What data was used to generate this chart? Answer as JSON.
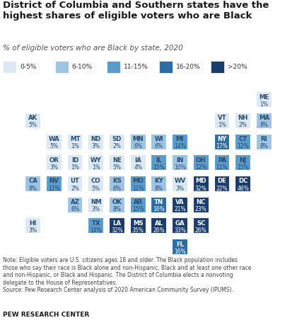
{
  "title": "District of Columbia and Southern states have the\nhighest shares of eligible voters who are Black",
  "subtitle": "% of eligible voters who are Black by state, 2020",
  "note": "Note: Eligible voters are U.S. citizens ages 18 and older. The Black population includes\nthose who say their race is Black alone and non-Hispanic, Black and at least one other race\nand non-Hispanic, or Black and Hispanic. The District of Columbia elects a nonvoting\ndelegate to the House of Representatives.\nSource: Pew Research Center analysis of 2020 American Community Survey (IPUMS).",
  "footer": "PEW RESEARCH CENTER",
  "legend": [
    {
      "label": "0-5%",
      "color": "#dce9f5"
    },
    {
      "label": "6-10%",
      "color": "#9ec4e4"
    },
    {
      "label": "11-15%",
      "color": "#5b9bcc"
    },
    {
      "label": "16-20%",
      "color": "#2e6da4"
    },
    {
      "label": ">20%",
      "color": "#1a3d6e"
    }
  ],
  "states": [
    {
      "abbr": "ME",
      "value": 1,
      "col": 11,
      "row": 0
    },
    {
      "abbr": "AK",
      "value": 5,
      "col": 0,
      "row": 1
    },
    {
      "abbr": "VT",
      "value": 1,
      "col": 9,
      "row": 1
    },
    {
      "abbr": "NH",
      "value": 2,
      "col": 10,
      "row": 1
    },
    {
      "abbr": "MA",
      "value": 8,
      "col": 11,
      "row": 1
    },
    {
      "abbr": "WA",
      "value": 5,
      "col": 1,
      "row": 2
    },
    {
      "abbr": "MT",
      "value": 1,
      "col": 2,
      "row": 2
    },
    {
      "abbr": "ND",
      "value": 3,
      "col": 3,
      "row": 2
    },
    {
      "abbr": "SD",
      "value": 2,
      "col": 4,
      "row": 2
    },
    {
      "abbr": "MN",
      "value": 6,
      "col": 5,
      "row": 2
    },
    {
      "abbr": "WI",
      "value": 6,
      "col": 6,
      "row": 2
    },
    {
      "abbr": "MI",
      "value": 14,
      "col": 7,
      "row": 2
    },
    {
      "abbr": "NY",
      "value": 17,
      "col": 9,
      "row": 2
    },
    {
      "abbr": "CT",
      "value": 12,
      "col": 10,
      "row": 2
    },
    {
      "abbr": "RI",
      "value": 8,
      "col": 11,
      "row": 2
    },
    {
      "abbr": "OR",
      "value": 3,
      "col": 1,
      "row": 3
    },
    {
      "abbr": "ID",
      "value": 1,
      "col": 2,
      "row": 3
    },
    {
      "abbr": "WY",
      "value": 1,
      "col": 3,
      "row": 3
    },
    {
      "abbr": "NE",
      "value": 5,
      "col": 4,
      "row": 3
    },
    {
      "abbr": "IA",
      "value": 4,
      "col": 5,
      "row": 3
    },
    {
      "abbr": "IL",
      "value": 15,
      "col": 6,
      "row": 3
    },
    {
      "abbr": "IN",
      "value": 10,
      "col": 7,
      "row": 3
    },
    {
      "abbr": "OH",
      "value": 12,
      "col": 8,
      "row": 3
    },
    {
      "abbr": "PA",
      "value": 11,
      "col": 9,
      "row": 3
    },
    {
      "abbr": "NJ",
      "value": 15,
      "col": 10,
      "row": 3
    },
    {
      "abbr": "CA",
      "value": 8,
      "col": 0,
      "row": 4
    },
    {
      "abbr": "NV",
      "value": 11,
      "col": 1,
      "row": 4
    },
    {
      "abbr": "UT",
      "value": 2,
      "col": 2,
      "row": 4
    },
    {
      "abbr": "CO",
      "value": 5,
      "col": 3,
      "row": 4
    },
    {
      "abbr": "KS",
      "value": 6,
      "col": 4,
      "row": 4
    },
    {
      "abbr": "MO",
      "value": 11,
      "col": 5,
      "row": 4
    },
    {
      "abbr": "KY",
      "value": 8,
      "col": 6,
      "row": 4
    },
    {
      "abbr": "WV",
      "value": 3,
      "col": 7,
      "row": 4
    },
    {
      "abbr": "MD",
      "value": 32,
      "col": 8,
      "row": 4
    },
    {
      "abbr": "DE",
      "value": 22,
      "col": 9,
      "row": 4
    },
    {
      "abbr": "DC",
      "value": 46,
      "col": 10,
      "row": 4
    },
    {
      "abbr": "AZ",
      "value": 6,
      "col": 2,
      "row": 5
    },
    {
      "abbr": "NM",
      "value": 3,
      "col": 3,
      "row": 5
    },
    {
      "abbr": "OK",
      "value": 8,
      "col": 4,
      "row": 5
    },
    {
      "abbr": "AR",
      "value": 15,
      "col": 5,
      "row": 5
    },
    {
      "abbr": "TN",
      "value": 16,
      "col": 6,
      "row": 5
    },
    {
      "abbr": "VA",
      "value": 21,
      "col": 7,
      "row": 5
    },
    {
      "abbr": "NC",
      "value": 23,
      "col": 8,
      "row": 5
    },
    {
      "abbr": "HI",
      "value": 3,
      "col": 0,
      "row": 6
    },
    {
      "abbr": "TX",
      "value": 14,
      "col": 3,
      "row": 6
    },
    {
      "abbr": "LA",
      "value": 32,
      "col": 4,
      "row": 6
    },
    {
      "abbr": "MS",
      "value": 35,
      "col": 5,
      "row": 6
    },
    {
      "abbr": "AL",
      "value": 26,
      "col": 6,
      "row": 6
    },
    {
      "abbr": "GA",
      "value": 33,
      "col": 7,
      "row": 6
    },
    {
      "abbr": "SC",
      "value": 26,
      "col": 8,
      "row": 6
    },
    {
      "abbr": "FL",
      "value": 16,
      "col": 7,
      "row": 7
    }
  ],
  "color_ranges": [
    {
      "max": 5,
      "color": "#dce9f5"
    },
    {
      "max": 10,
      "color": "#9ec4e4"
    },
    {
      "max": 15,
      "color": "#5b9bcc"
    },
    {
      "max": 20,
      "color": "#2e6da4"
    },
    {
      "max": 100,
      "color": "#1a3d6e"
    }
  ]
}
